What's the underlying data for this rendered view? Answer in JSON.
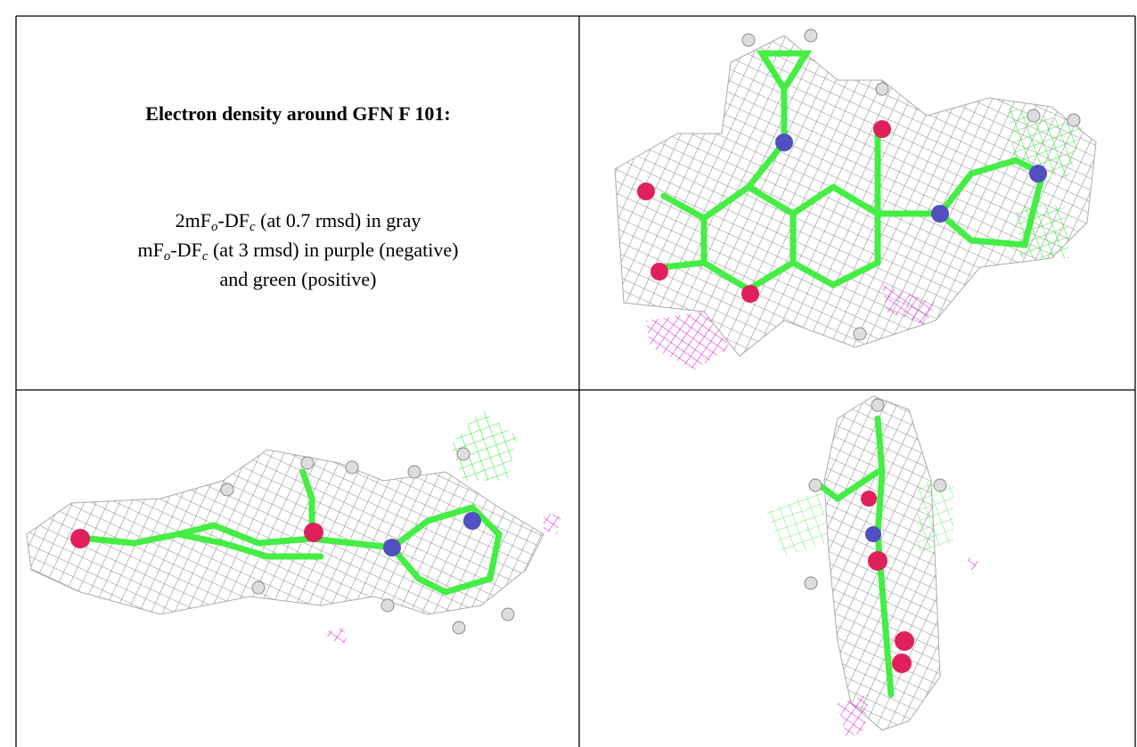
{
  "caption": {
    "title": "Electron density around GFN F 101:",
    "lines": [
      [
        "2mF",
        "o",
        "-DF",
        "c",
        " (at 0.7 rmsd) in gray"
      ],
      [
        "mF",
        "o",
        "-DF",
        "c",
        " (at 3 rmsd) in purple (negative)"
      ],
      [
        "and green (positive)"
      ]
    ]
  }
}
